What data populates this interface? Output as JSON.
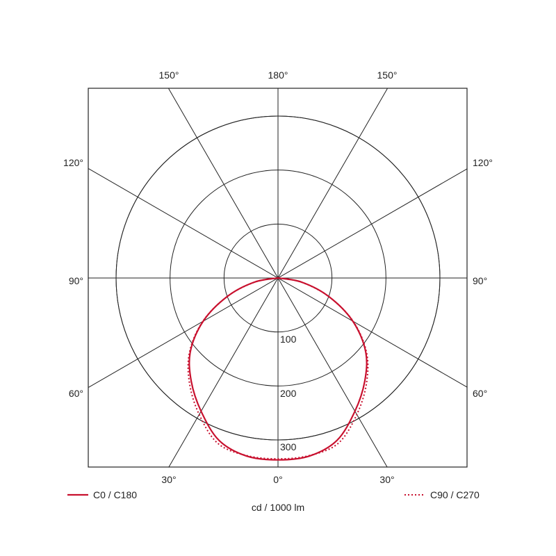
{
  "chart_data": {
    "type": "polar",
    "unit_label": "cd / 1000 lm",
    "radial_ticks": [
      100,
      200,
      300
    ],
    "rmax": 350,
    "angle_labels": {
      "top": [
        "150°",
        "180°",
        "150°"
      ],
      "left": [
        "120°",
        "90°",
        "60°"
      ],
      "right": [
        "120°",
        "90°",
        "60°"
      ],
      "bottom": [
        "30°",
        "0°",
        "30°"
      ]
    },
    "grid": true,
    "angles_deg": [
      0,
      10,
      20,
      30,
      40,
      50,
      60,
      70,
      80,
      90
    ],
    "series": [
      {
        "name": "C0 / C180",
        "style": "solid",
        "color": "#c8102e",
        "values": [
          337,
          335,
          320,
          285,
          250,
          212,
          160,
          100,
          45,
          0
        ]
      },
      {
        "name": "C90 / C270",
        "style": "dotted",
        "color": "#c8102e",
        "values": [
          335,
          334,
          326,
          292,
          255,
          214,
          161,
          100,
          44,
          0
        ]
      }
    ],
    "legend_placement": "bottom"
  }
}
